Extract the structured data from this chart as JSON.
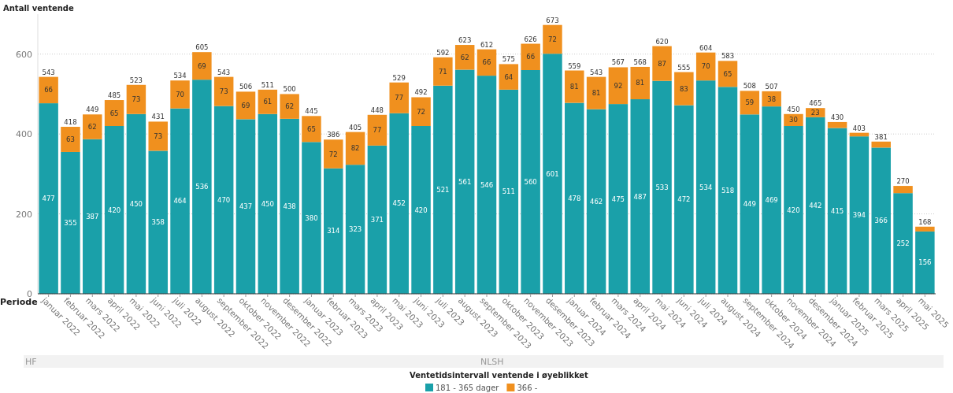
{
  "chart_data": {
    "type": "bar",
    "stacked": true,
    "ylabel": "Antall ventende",
    "xlabel": "Periode",
    "legend_title": "Ventetidsintervall ventende i øyeblikket",
    "legend": "bottom",
    "grid": "y",
    "categories": [
      "januar 2022",
      "februar 2022",
      "mars 2022",
      "april 2022",
      "mai 2022",
      "juni 2022",
      "juli 2022",
      "august 2022",
      "september 2022",
      "oktober 2022",
      "november 2022",
      "desember 2022",
      "januar 2023",
      "februar 2023",
      "mars 2023",
      "april 2023",
      "mai 2023",
      "juni 2023",
      "juli 2023",
      "august 2023",
      "september 2023",
      "oktober 2023",
      "november 2023",
      "desember 2023",
      "januar 2024",
      "februar 2024",
      "mars 2024",
      "april 2024",
      "mai 2024",
      "juni 2024",
      "juli 2024",
      "august 2024",
      "september 2024",
      "oktober 2024",
      "november 2024",
      "desember 2024",
      "januar 2025",
      "februar 2025",
      "mars 2025",
      "april 2025",
      "mai 2025"
    ],
    "series": [
      {
        "name": "181 - 365 dager",
        "color": "#1aa0a9",
        "values": [
          477,
          355,
          387,
          420,
          450,
          358,
          464,
          536,
          470,
          437,
          450,
          438,
          380,
          314,
          323,
          371,
          452,
          420,
          521,
          561,
          546,
          511,
          560,
          601,
          478,
          462,
          475,
          487,
          533,
          472,
          534,
          518,
          449,
          469,
          420,
          442,
          415,
          394,
          366,
          252,
          156
        ],
        "value_labels": [
          "477",
          "355",
          "387",
          "420",
          "450",
          "358",
          "464",
          "536",
          "470",
          "437",
          "450",
          "438",
          "380",
          "314",
          "323",
          "371",
          "452",
          "420",
          "521",
          "561",
          "546",
          "511",
          "560",
          "601",
          "478",
          "462",
          "475",
          "487",
          "533",
          "472",
          "534",
          "518",
          "449",
          "469",
          "420",
          "442",
          "415",
          "394",
          "366",
          "252",
          "156"
        ]
      },
      {
        "name": "366 -",
        "color": "#f0901e",
        "values": [
          66,
          63,
          62,
          65,
          73,
          73,
          70,
          69,
          73,
          69,
          61,
          62,
          65,
          72,
          82,
          77,
          77,
          72,
          71,
          62,
          66,
          64,
          66,
          72,
          81,
          81,
          92,
          81,
          87,
          83,
          70,
          65,
          59,
          38,
          30,
          23,
          15,
          9,
          15,
          18,
          12
        ],
        "value_labels": [
          "66",
          "63",
          "62",
          "65",
          "73",
          "73",
          "70",
          "69",
          "73",
          "69",
          "61",
          "62",
          "65",
          "72",
          "82",
          "77",
          "77",
          "72",
          "71",
          "62",
          "66",
          "64",
          "66",
          "72",
          "81",
          "81",
          "92",
          "81",
          "87",
          "83",
          "70",
          "65",
          "59",
          "38",
          "30",
          "23",
          null,
          null,
          null,
          null,
          null
        ]
      }
    ],
    "totals": [
      "543",
      "418",
      "449",
      "485",
      "523",
      "431",
      "534",
      "605",
      "543",
      "506",
      "511",
      "500",
      "445",
      "386",
      "405",
      "448",
      "529",
      "492",
      "592",
      "623",
      "612",
      "575",
      "626",
      "673",
      "559",
      "543",
      "567",
      "568",
      "620",
      "555",
      "604",
      "583",
      "508",
      "507",
      "450",
      "465",
      "430",
      "403",
      "381",
      "270",
      "168"
    ],
    "ylim": [
      0,
      700
    ],
    "yticks": [
      0,
      200,
      400,
      600
    ],
    "annotations": [
      "HF",
      "NLSH"
    ]
  }
}
